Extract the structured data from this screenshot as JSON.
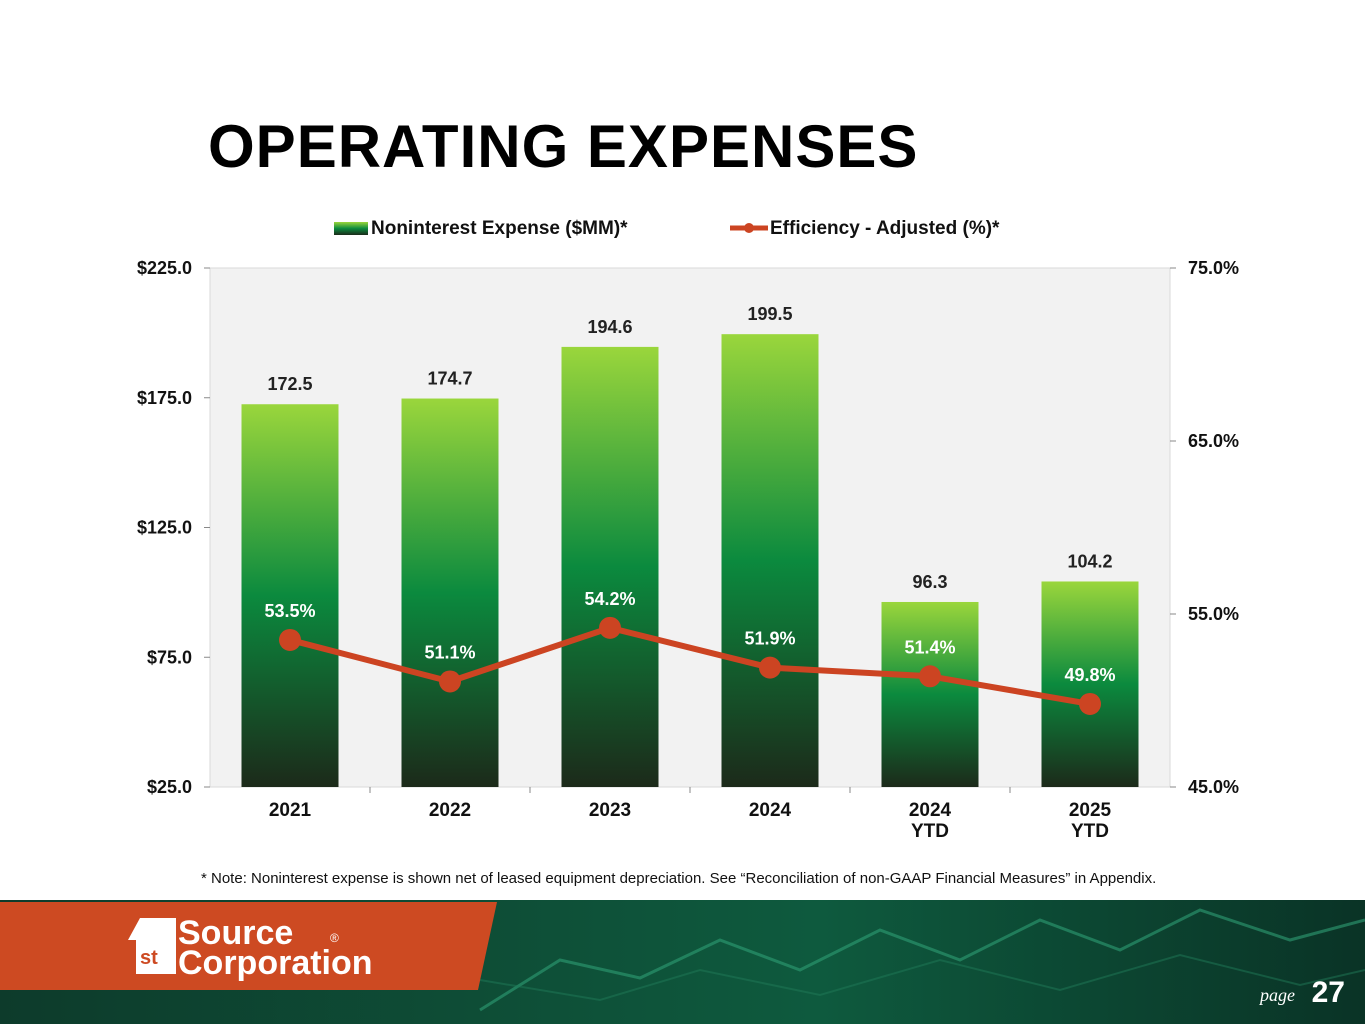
{
  "slide": {
    "title": "OPERATING EXPENSES",
    "note": "* Note: Noninterest expense is shown net of leased equipment depreciation. See “Reconciliation of non-GAAP Financial Measures” in Appendix.",
    "page_label": "page",
    "page_number": "27"
  },
  "brand": {
    "logo_badge": "st",
    "logo_line1": "Source",
    "logo_line2": "Corporation",
    "logo_mark": "®",
    "orange": "#cd4a22",
    "dark_green": "#0a3a2a"
  },
  "chart_data": {
    "type": "bar",
    "categories": [
      "2021",
      "2022",
      "2023",
      "2024",
      "2024\nYTD",
      "2025\nYTD"
    ],
    "series": [
      {
        "name": "Noninterest Expense ($MM)*",
        "type": "bar",
        "axis": "left",
        "values": [
          172.5,
          174.7,
          194.6,
          199.5,
          96.3,
          104.2
        ],
        "labels": [
          "172.5",
          "174.7",
          "194.6",
          "199.5",
          "96.3",
          "104.2"
        ],
        "color_top": "#9ad63c",
        "color_mid": "#0b8a3e",
        "color_bottom": "#1c2a1a"
      },
      {
        "name": "Efficiency - Adjusted (%)*",
        "type": "line",
        "axis": "right",
        "values": [
          53.5,
          51.1,
          54.2,
          51.9,
          51.4,
          49.8
        ],
        "labels": [
          "53.5%",
          "51.1%",
          "54.2%",
          "51.9%",
          "51.4%",
          "49.8%"
        ],
        "color": "#cc4422"
      }
    ],
    "left_axis": {
      "ylim": [
        25,
        225
      ],
      "ticks": [
        "$225.0",
        "$175.0",
        "$125.0",
        "$75.0",
        "$25.0"
      ],
      "tick_values": [
        225,
        175,
        125,
        75,
        25
      ]
    },
    "right_axis": {
      "ylim": [
        45,
        75
      ],
      "ticks": [
        "75.0%",
        "65.0%",
        "55.0%",
        "45.0%"
      ],
      "tick_values": [
        75,
        65,
        55,
        45
      ]
    },
    "legend_position": "top-center",
    "plot_background": "#f2f2f2"
  }
}
